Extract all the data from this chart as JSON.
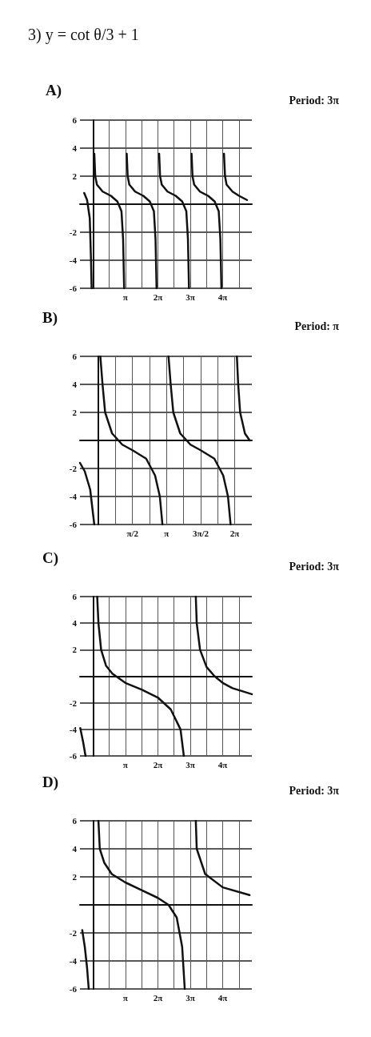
{
  "chart_data": [
    {
      "type": "line",
      "title": "3) y = cot θ/3 + 1",
      "subtitle": "A)",
      "annotations": [
        "Period: 3π"
      ],
      "grid": true,
      "marker": "none",
      "xlim": [
        -1.26,
        15.39
      ],
      "ylim": [
        -6,
        6
      ],
      "xticks": [
        {
          "value": 1.571,
          "label": null
        },
        {
          "value": 3.142,
          "label": "π"
        },
        {
          "value": 4.712,
          "label": null
        },
        {
          "value": 6.283,
          "label": "2π"
        },
        {
          "value": 7.854,
          "label": null
        },
        {
          "value": 9.425,
          "label": "3π"
        },
        {
          "value": 10.996,
          "label": null
        },
        {
          "value": 12.566,
          "label": "4π"
        },
        {
          "value": 14.137,
          "label": null
        }
      ],
      "yticks": [
        -6,
        -4,
        -2,
        2,
        4,
        6
      ],
      "series": [
        {
          "color": "#111111",
          "x": [
            -0.85,
            -0.57,
            -0.31,
            -0.19,
            -0.13
          ],
          "values": [
            0.8,
            0.3,
            -1,
            -4,
            -6
          ]
        },
        {
          "color": "#111111",
          "x": [
            0.13,
            0.22,
            0.38,
            0.94,
            1.73,
            2.36,
            2.76,
            2.92,
            3.02
          ],
          "values": [
            3.6,
            2,
            1.4,
            0.9,
            0.6,
            0.2,
            -0.5,
            -2.5,
            -6
          ]
        },
        {
          "color": "#111111",
          "x": [
            3.27,
            3.36,
            3.52,
            4.08,
            4.87,
            5.5,
            5.9,
            6.06,
            6.16
          ],
          "values": [
            3.6,
            2,
            1.4,
            0.9,
            0.6,
            0.2,
            -0.5,
            -2.5,
            -6
          ]
        },
        {
          "color": "#111111",
          "x": [
            6.41,
            6.5,
            6.66,
            7.22,
            8.01,
            8.64,
            9.04,
            9.2,
            9.3
          ],
          "values": [
            3.6,
            2,
            1.4,
            0.9,
            0.6,
            0.2,
            -0.5,
            -2.5,
            -6
          ]
        },
        {
          "color": "#111111",
          "x": [
            9.55,
            9.64,
            9.8,
            10.36,
            11.15,
            11.78,
            12.18,
            12.34,
            12.44
          ],
          "values": [
            3.6,
            2,
            1.4,
            0.9,
            0.6,
            0.2,
            -0.5,
            -2.5,
            -6
          ]
        },
        {
          "color": "#111111",
          "x": [
            12.69,
            12.79,
            12.94,
            13.51,
            14.14,
            14.92
          ],
          "values": [
            3.6,
            2,
            1.4,
            0.9,
            0.6,
            0.3
          ]
        }
      ]
    },
    {
      "type": "line",
      "title": "B)",
      "annotations": [
        "Period: π"
      ],
      "grid": true,
      "marker": "none",
      "xlim": [
        -0.85,
        7.07
      ],
      "ylim": [
        -6,
        6
      ],
      "xticks": [
        {
          "value": 0.785,
          "label": null
        },
        {
          "value": 1.571,
          "label": "π/2"
        },
        {
          "value": 2.356,
          "label": null
        },
        {
          "value": 3.142,
          "label": "π"
        },
        {
          "value": 3.927,
          "label": null
        },
        {
          "value": 4.712,
          "label": "3π/2"
        },
        {
          "value": 5.498,
          "label": null
        },
        {
          "value": 6.283,
          "label": "2π"
        }
      ],
      "yticks": [
        -6,
        -4,
        -2,
        2,
        4,
        6
      ],
      "series": [
        {
          "color": "#111111",
          "x": [
            -0.85,
            -0.63,
            -0.38,
            -0.19
          ],
          "values": [
            -1.6,
            -2.2,
            -3.5,
            -6
          ]
        },
        {
          "color": "#111111",
          "x": [
            0.09,
            0.19,
            0.31,
            0.63,
            1.1,
            1.57,
            2.2,
            2.61,
            2.83,
            2.95
          ],
          "values": [
            6,
            4,
            2,
            0.5,
            -0.3,
            -0.7,
            -1.3,
            -2.5,
            -4,
            -6
          ]
        },
        {
          "color": "#111111",
          "x": [
            3.23,
            3.33,
            3.45,
            3.77,
            4.24,
            4.71,
            5.34,
            5.75,
            5.97,
            6.09
          ],
          "values": [
            6,
            4,
            2,
            0.5,
            -0.3,
            -0.7,
            -1.3,
            -2.5,
            -4,
            -6
          ]
        },
        {
          "color": "#111111",
          "x": [
            6.38,
            6.44,
            6.53,
            6.75,
            6.97
          ],
          "values": [
            6,
            4,
            2,
            0.5,
            0
          ]
        }
      ]
    },
    {
      "type": "line",
      "title": "C)",
      "annotations": [
        "Period: 3π"
      ],
      "grid": true,
      "marker": "none",
      "xlim": [
        -1.26,
        15.39
      ],
      "ylim": [
        -6,
        6
      ],
      "xticks": [
        {
          "value": 1.571,
          "label": null
        },
        {
          "value": 3.142,
          "label": "π"
        },
        {
          "value": 4.712,
          "label": null
        },
        {
          "value": 6.283,
          "label": "2π"
        },
        {
          "value": 7.854,
          "label": null
        },
        {
          "value": 9.425,
          "label": "3π"
        },
        {
          "value": 10.996,
          "label": null
        },
        {
          "value": 12.566,
          "label": "4π"
        },
        {
          "value": 14.137,
          "label": null
        }
      ],
      "yticks": [
        -6,
        -4,
        -2,
        2,
        4,
        6
      ],
      "series": [
        {
          "color": "#111111",
          "x": [
            -1.23,
            -0.94,
            -0.72
          ],
          "values": [
            -3.9,
            -5,
            -6
          ]
        },
        {
          "color": "#111111",
          "x": [
            0.41,
            0.53,
            0.79,
            1.26,
            1.88,
            3.14,
            4.71,
            6.28,
            7.54,
            8.48,
            8.8
          ],
          "values": [
            6,
            4,
            2,
            0.8,
            0.2,
            -0.5,
            -1,
            -1.6,
            -2.5,
            -4,
            -6
          ]
        },
        {
          "color": "#111111",
          "x": [
            9.96,
            10.05,
            10.37,
            11.0,
            11.78,
            12.57,
            13.51,
            15.39
          ],
          "values": [
            6,
            4,
            2,
            0.7,
            0,
            -0.5,
            -0.9,
            -1.35
          ]
        }
      ]
    },
    {
      "type": "line",
      "title": "D)",
      "annotations": [
        "Period: 3π"
      ],
      "grid": true,
      "marker": "none",
      "xlim": [
        -1.26,
        15.39
      ],
      "ylim": [
        -6,
        6
      ],
      "xticks": [
        {
          "value": 1.571,
          "label": null
        },
        {
          "value": 3.142,
          "label": "π"
        },
        {
          "value": 4.712,
          "label": null
        },
        {
          "value": 6.283,
          "label": "2π"
        },
        {
          "value": 7.854,
          "label": null
        },
        {
          "value": 9.425,
          "label": "3π"
        },
        {
          "value": 10.996,
          "label": null
        },
        {
          "value": 12.566,
          "label": "4π"
        },
        {
          "value": 14.137,
          "label": null
        }
      ],
      "yticks": [
        -6,
        -4,
        -2,
        2,
        4,
        6
      ],
      "series": [
        {
          "color": "#111111",
          "x": [
            -1.04,
            -0.79,
            -0.57,
            -0.41
          ],
          "values": [
            -1.8,
            -3,
            -4.5,
            -6
          ]
        },
        {
          "color": "#111111",
          "x": [
            0.53,
            0.66,
            1.1,
            1.82,
            3.14,
            4.71,
            6.28,
            7.32,
            8.11,
            8.64,
            8.89
          ],
          "values": [
            6,
            4,
            3,
            2.2,
            1.6,
            1.05,
            0.5,
            0,
            -0.9,
            -3,
            -6
          ]
        },
        {
          "color": "#111111",
          "x": [
            9.96,
            10.05,
            10.87,
            12.57,
            15.17
          ],
          "values": [
            6,
            4,
            2.2,
            1.25,
            0.7
          ]
        }
      ]
    }
  ]
}
